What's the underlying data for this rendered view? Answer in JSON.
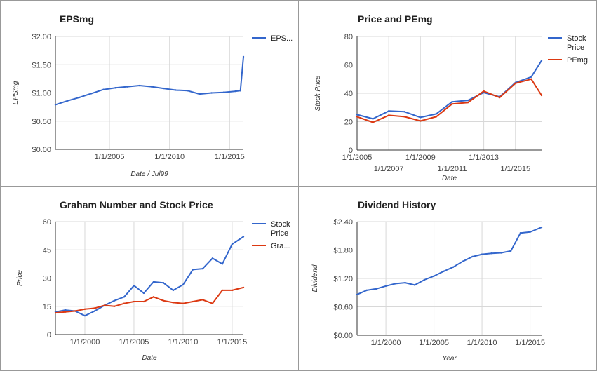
{
  "chart_data": [
    {
      "type": "line",
      "title": "EPSmg",
      "xlabel": "Date / Jul99",
      "ylabel": "EPSmg",
      "xlim": [
        2000.5,
        2016.15
      ],
      "ylim": [
        0,
        2.0
      ],
      "yticks": [
        0,
        0.5,
        1.0,
        1.5,
        2.0
      ],
      "ytick_labels": [
        "$0.00",
        "$0.50",
        "$1.00",
        "$1.50",
        "$2.00"
      ],
      "xticks": [
        2005,
        2010,
        2015
      ],
      "xtick_labels": [
        "1/1/2005",
        "1/1/2010",
        "1/1/2015"
      ],
      "grid": true,
      "legend_position": "right",
      "series": [
        {
          "name": "EPS...",
          "color": "#3366cc",
          "x": [
            2000.5,
            2001.5,
            2002.5,
            2003.5,
            2004.5,
            2005.5,
            2006.5,
            2007.5,
            2008.5,
            2009.5,
            2010.5,
            2011.5,
            2012.5,
            2013.5,
            2014.5,
            2015.5,
            2015.9,
            2016.15
          ],
          "values": [
            0.79,
            0.86,
            0.92,
            0.99,
            1.06,
            1.09,
            1.11,
            1.13,
            1.11,
            1.08,
            1.05,
            1.04,
            0.98,
            1.0,
            1.01,
            1.03,
            1.04,
            1.64
          ]
        }
      ]
    },
    {
      "type": "line",
      "title": "Price and PEmg",
      "xlabel": "Date",
      "ylabel": "Stock Price",
      "xlim": [
        2005,
        2016.65
      ],
      "ylim": [
        0,
        80
      ],
      "yticks": [
        0,
        20,
        40,
        60,
        80
      ],
      "ytick_labels": [
        "0",
        "20",
        "40",
        "60",
        "80"
      ],
      "xticks": [
        2005,
        2007,
        2009,
        2011,
        2013,
        2015
      ],
      "xtick_labels": [
        "1/1/2005",
        "1/1/2007",
        "1/1/2009",
        "1/1/2011",
        "1/1/2013",
        "1/1/2015"
      ],
      "grid": true,
      "legend_position": "right",
      "series": [
        {
          "name": "Stock Price",
          "color": "#3366cc",
          "x": [
            2005,
            2006,
            2007,
            2008,
            2009,
            2010,
            2011,
            2012,
            2013,
            2014,
            2015,
            2016,
            2016.65
          ],
          "values": [
            25,
            22,
            27.5,
            27,
            23,
            25.5,
            34,
            35,
            40.5,
            37.5,
            47.5,
            51.5,
            63
          ]
        },
        {
          "name": "PEmg",
          "color": "#dc3912",
          "x": [
            2005,
            2006,
            2007,
            2008,
            2009,
            2010,
            2011,
            2012,
            2013,
            2014,
            2015,
            2016,
            2016.65
          ],
          "values": [
            23.5,
            19.5,
            24.5,
            23.5,
            20.5,
            23.5,
            32.5,
            33.5,
            41.5,
            37,
            47,
            50,
            38.5
          ]
        }
      ]
    },
    {
      "type": "line",
      "title": "Graham Number and Stock Price",
      "xlabel": "Date",
      "ylabel": "Price",
      "xlim": [
        1997,
        2016.15
      ],
      "ylim": [
        0,
        60
      ],
      "yticks": [
        0,
        15,
        30,
        45,
        60
      ],
      "ytick_labels": [
        "0",
        "15",
        "30",
        "45",
        "60"
      ],
      "xticks": [
        2000,
        2005,
        2010,
        2015
      ],
      "xtick_labels": [
        "1/1/2000",
        "1/1/2005",
        "1/1/2010",
        "1/1/2015"
      ],
      "grid": true,
      "legend_position": "right",
      "series": [
        {
          "name": "Stock Price",
          "color": "#3366cc",
          "x": [
            1997,
            1998,
            1999,
            2000,
            2001,
            2002,
            2003,
            2004,
            2005,
            2006,
            2007,
            2008,
            2009,
            2010,
            2011,
            2012,
            2013,
            2014,
            2015,
            2016.15
          ],
          "values": [
            12,
            13,
            12.5,
            10,
            12.5,
            15.5,
            18,
            20,
            26,
            22,
            28,
            27.5,
            23.5,
            26.5,
            34.5,
            35,
            40.5,
            37.5,
            48,
            52
          ]
        },
        {
          "name": "Gra...",
          "color": "#dc3912",
          "x": [
            1997,
            1998,
            1999,
            2000,
            2001,
            2002,
            2003,
            2004,
            2005,
            2006,
            2007,
            2008,
            2009,
            2010,
            2011,
            2012,
            2013,
            2014,
            2015,
            2016.15
          ],
          "values": [
            11.5,
            12,
            12.5,
            13.5,
            14,
            15.5,
            15,
            16.5,
            17.5,
            17.5,
            20,
            18,
            17,
            16.5,
            17.5,
            18.5,
            16.5,
            23.5,
            23.5,
            25
          ]
        }
      ]
    },
    {
      "type": "line",
      "title": "Dividend History",
      "xlabel": "Year",
      "ylabel": "Dividend",
      "xlim": [
        1997,
        2016.2
      ],
      "ylim": [
        0,
        2.4
      ],
      "yticks": [
        0,
        0.6,
        1.2,
        1.8,
        2.4
      ],
      "ytick_labels": [
        "$0.00",
        "$0.60",
        "$1.20",
        "$1.80",
        "$2.40"
      ],
      "xticks": [
        2000,
        2005,
        2010,
        2015
      ],
      "xtick_labels": [
        "1/1/2000",
        "1/1/2005",
        "1/1/2010",
        "1/1/2015"
      ],
      "grid": true,
      "legend_position": "none",
      "series": [
        {
          "name": "",
          "color": "#3366cc",
          "x": [
            1997,
            1998,
            1999,
            2000,
            2001,
            2002,
            2003,
            2004,
            2005,
            2006,
            2007,
            2008,
            2009,
            2010,
            2011,
            2012,
            2013,
            2014,
            2015,
            2016.2
          ],
          "values": [
            0.86,
            0.95,
            0.98,
            1.04,
            1.09,
            1.11,
            1.06,
            1.17,
            1.25,
            1.35,
            1.44,
            1.56,
            1.66,
            1.71,
            1.73,
            1.74,
            1.78,
            2.16,
            2.18,
            2.28
          ]
        }
      ]
    }
  ]
}
